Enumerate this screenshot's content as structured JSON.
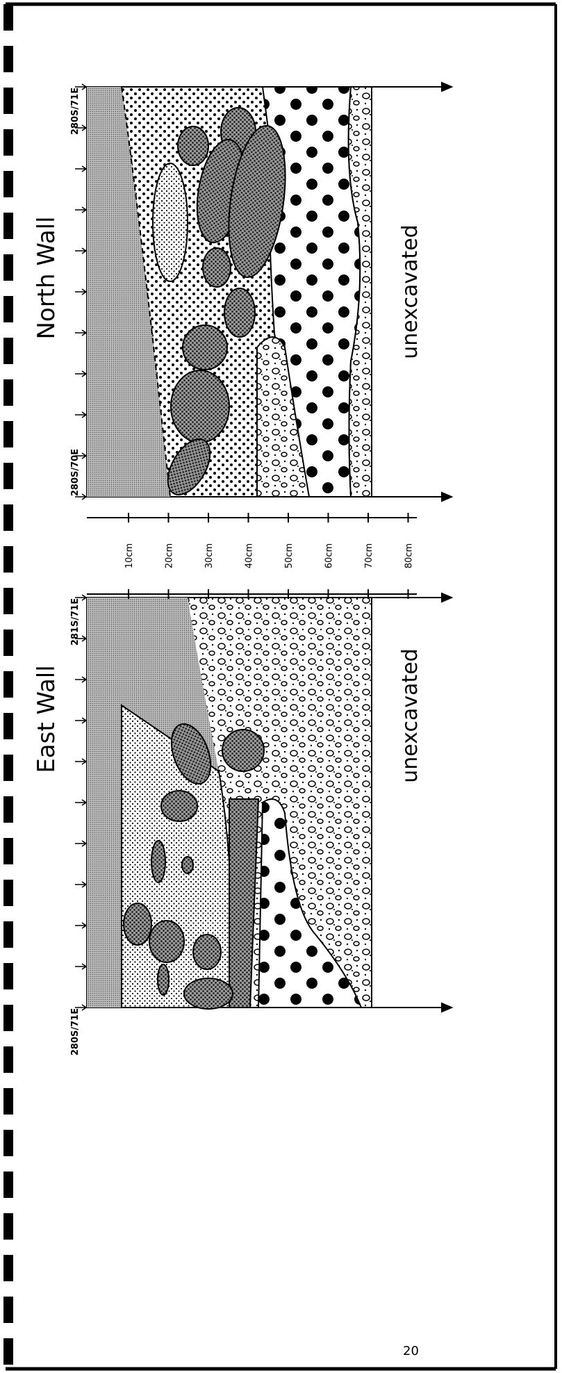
{
  "panels": [
    {
      "title": "North Wall",
      "station_start": "280S/71E",
      "station_end": "280S/70E",
      "note": "unexcavated"
    },
    {
      "title": "East Wall",
      "station_start": "281S/71E",
      "station_end": "280S/71E",
      "note": "unexcavated"
    }
  ],
  "depth_scale": [
    "10cm",
    "20cm",
    "30cm",
    "40cm",
    "50cm",
    "60cm",
    "70cm",
    "80cm"
  ],
  "page_number": "20"
}
